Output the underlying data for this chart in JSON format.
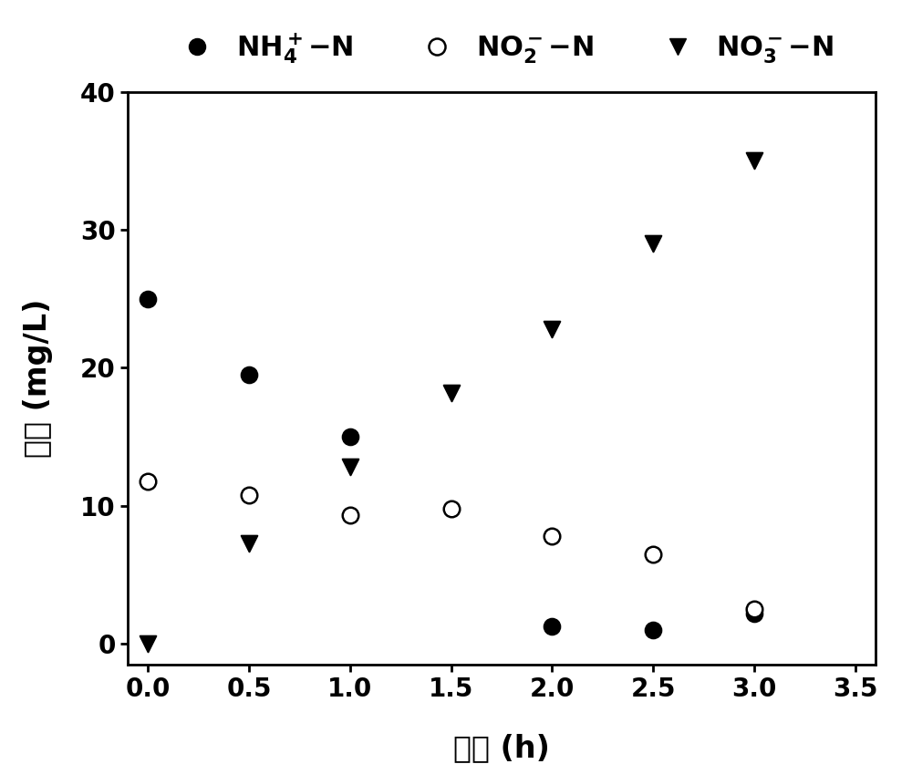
{
  "nh4_x": [
    0.0,
    0.5,
    1.0,
    2.0,
    2.5,
    3.0
  ],
  "nh4_y": [
    25.0,
    19.5,
    15.0,
    1.3,
    1.0,
    2.2
  ],
  "no2_x": [
    0.0,
    0.5,
    1.0,
    1.5,
    2.0,
    2.5,
    3.0
  ],
  "no2_y": [
    11.8,
    10.8,
    9.3,
    9.8,
    7.8,
    6.5,
    2.5
  ],
  "no3_x": [
    0.0,
    0.5,
    1.0,
    1.5,
    2.0,
    2.5,
    3.0
  ],
  "no3_y": [
    0.0,
    7.3,
    12.8,
    18.2,
    22.8,
    29.0,
    35.0
  ],
  "xlabel": "时间 (h)",
  "ylabel": "浓度 (mg/L)",
  "xlim": [
    -0.1,
    3.6
  ],
  "ylim": [
    -1.5,
    40
  ],
  "xticks": [
    0.0,
    0.5,
    1.0,
    1.5,
    2.0,
    2.5,
    3.0,
    3.5
  ],
  "yticks": [
    0,
    10,
    20,
    30,
    40
  ],
  "marker_size": 160,
  "font_size_label": 24,
  "font_size_tick": 20,
  "font_size_legend": 22,
  "lw_spine": 2.0,
  "color_filled": "#000000",
  "color_open": "#ffffff",
  "background_color": "#ffffff"
}
